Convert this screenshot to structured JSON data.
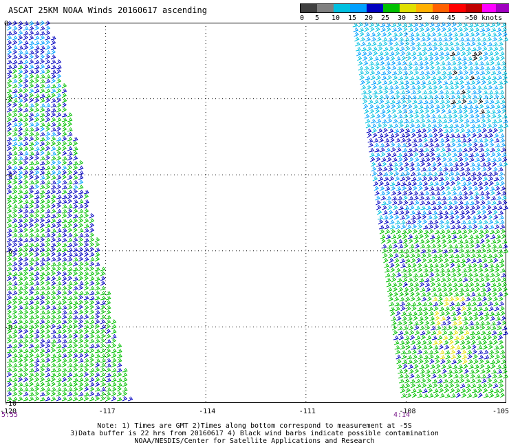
{
  "title": "ASCAT 25KM NOAA Winds 20160617 ascending",
  "legend": {
    "colors": [
      "#404040",
      "#808080",
      "#00c0e0",
      "#00a0ff",
      "#0000c0",
      "#00c000",
      "#e0e000",
      "#ffb000",
      "#ff6000",
      "#ff0000",
      "#c00000",
      "#ff00ff",
      "#a000c0",
      "#400080"
    ],
    "labels": [
      "0",
      "5",
      "10",
      "15",
      "20",
      "25",
      "30",
      "35",
      "40",
      "45",
      ">50 knots"
    ]
  },
  "axes": {
    "lat_labels": [
      "0",
      "-2",
      "-4",
      "-6",
      "-8",
      "-10"
    ],
    "lon_labels": [
      "-120",
      "-117",
      "-114",
      "-111",
      "-108",
      "-105"
    ]
  },
  "times": {
    "left": "5:55",
    "right": "4:14"
  },
  "notes": {
    "line1": "Note: 1) Times are GMT 2)Times along bottom correspond to measurement at -5S",
    "line2": "3)Data buffer is 22 hrs from 20160617 4) Black wind barbs indicate possible contamination",
    "line3": "NOAA/NESDIS/Center for Satellite Applications and Research"
  }
}
